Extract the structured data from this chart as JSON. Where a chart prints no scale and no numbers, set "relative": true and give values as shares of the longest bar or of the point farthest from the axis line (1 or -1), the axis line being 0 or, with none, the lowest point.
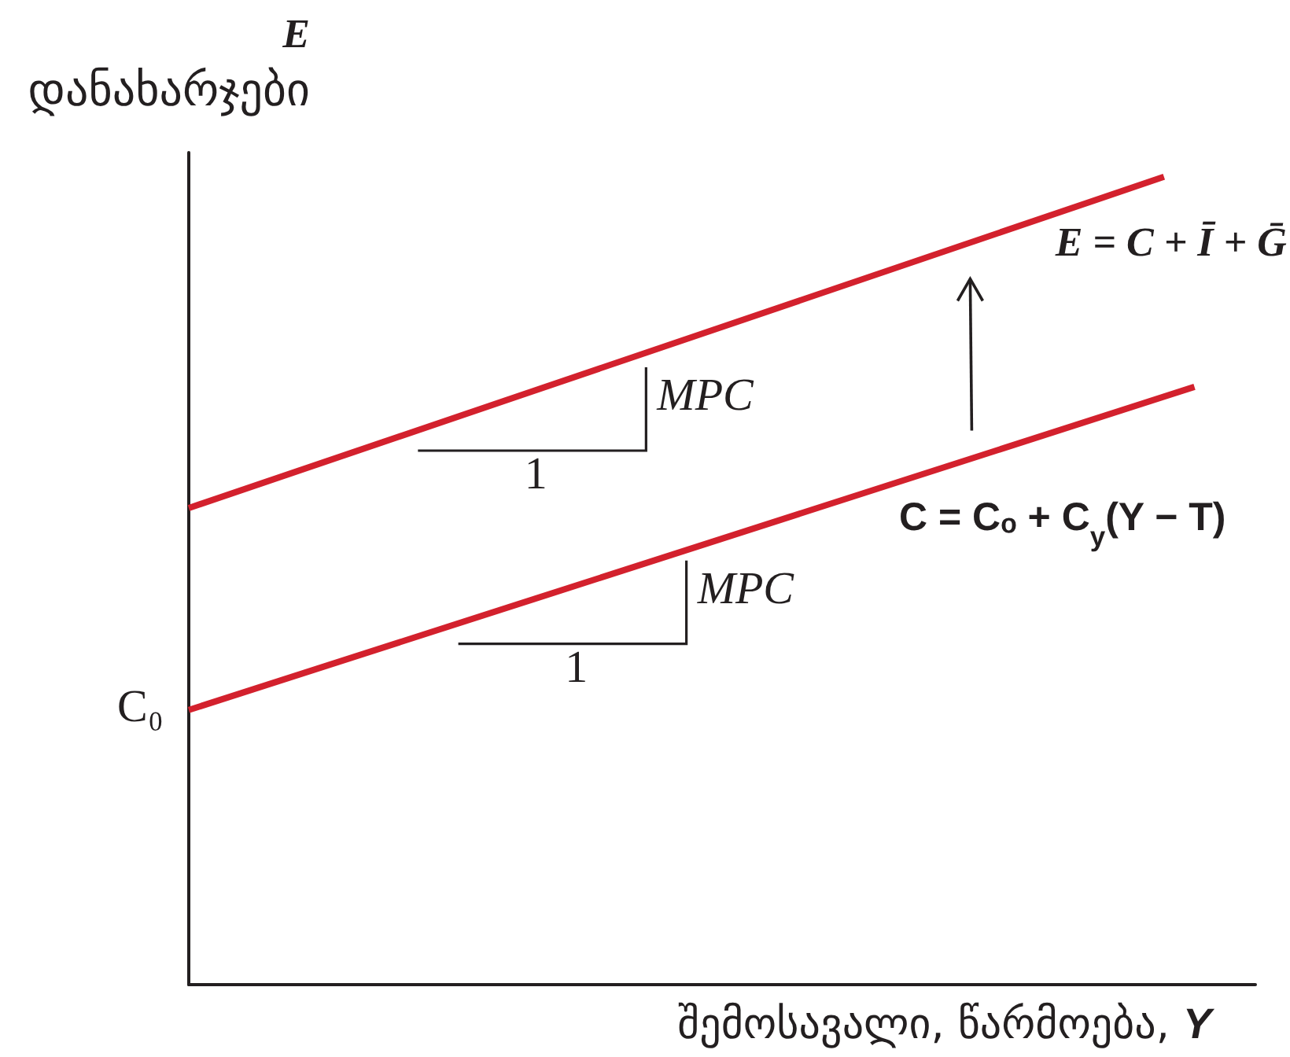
{
  "chart_data": {
    "type": "line",
    "relative": true,
    "ylabel": "E\nდანახარჯები",
    "xlabel": "შემოსავალი, წარმოება, Y",
    "categories": [
      null,
      null,
      null,
      null,
      null,
      null,
      null,
      null,
      null,
      null,
      null,
      null,
      null,
      null,
      null,
      null,
      null,
      null,
      null,
      null,
      null,
      null,
      null,
      null,
      null,
      null,
      null,
      null,
      null,
      null,
      null,
      null,
      null,
      null,
      null,
      null
    ],
    "series": [
      {
        "name": "E = C + Ī + Ḡ",
        "color": "#d3212d",
        "values": [
          0.59,
          null,
          null,
          null,
          null,
          null,
          null,
          null,
          null,
          null,
          null,
          null,
          null,
          null,
          null,
          null,
          null,
          null,
          null,
          null,
          null,
          null,
          null,
          null,
          null,
          null,
          null,
          null,
          null,
          null,
          null,
          null,
          1,
          null,
          null,
          null
        ]
      },
      {
        "name": "C = Cₒ + C$_{y}$(Y − T)",
        "color": "#d3212d",
        "values": [
          0.34,
          null,
          null,
          null,
          null,
          null,
          null,
          null,
          null,
          null,
          null,
          null,
          null,
          null,
          null,
          null,
          null,
          null,
          null,
          null,
          null,
          null,
          null,
          null,
          null,
          null,
          null,
          null,
          null,
          null,
          null,
          null,
          null,
          0.74,
          null,
          null
        ]
      }
    ],
    "annotations": [
      "MPC",
      "1",
      "MPC",
      "1",
      "C₀"
    ]
  }
}
